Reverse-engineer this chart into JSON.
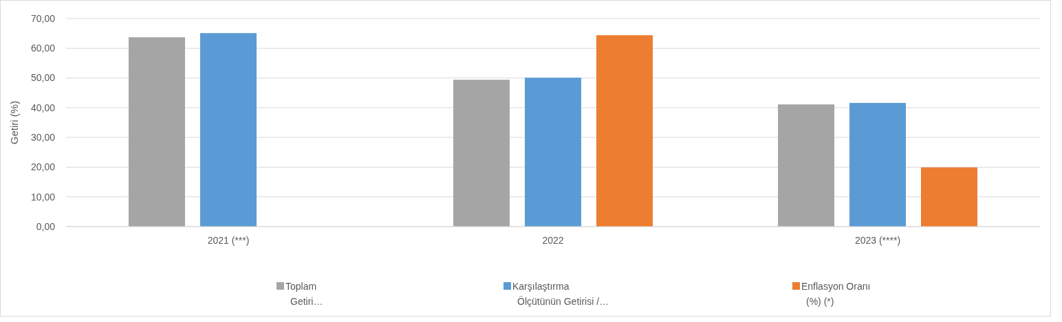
{
  "chart_data": {
    "type": "bar",
    "ylabel": "Getiri (%)",
    "categories": [
      "2021 (***)",
      "2022",
      "2023 (****)"
    ],
    "series": [
      {
        "name": "Toplam\nGetiri…",
        "color": "#a5a5a5",
        "values": [
          63.7,
          49.4,
          41.1
        ]
      },
      {
        "name": "Karşılaştırma\nÖlçütünün Getirisi /…",
        "color": "#5b9bd5",
        "values": [
          65.1,
          50.1,
          41.6
        ]
      },
      {
        "name": "Enflasyon Oranı\n(%) (*)",
        "color": "#ed7d31",
        "values": [
          null,
          64.4,
          19.9
        ]
      }
    ],
    "ylim": [
      0,
      70
    ],
    "yticks": [
      {
        "value": 0,
        "label": "0,00"
      },
      {
        "value": 10,
        "label": "10,00"
      },
      {
        "value": 20,
        "label": "20,00"
      },
      {
        "value": 30,
        "label": "30,00"
      },
      {
        "value": 40,
        "label": "40,00"
      },
      {
        "value": 50,
        "label": "50,00"
      },
      {
        "value": 60,
        "label": "60,00"
      },
      {
        "value": 70,
        "label": "70,00"
      }
    ],
    "grid": "y",
    "legend": "bottom"
  }
}
